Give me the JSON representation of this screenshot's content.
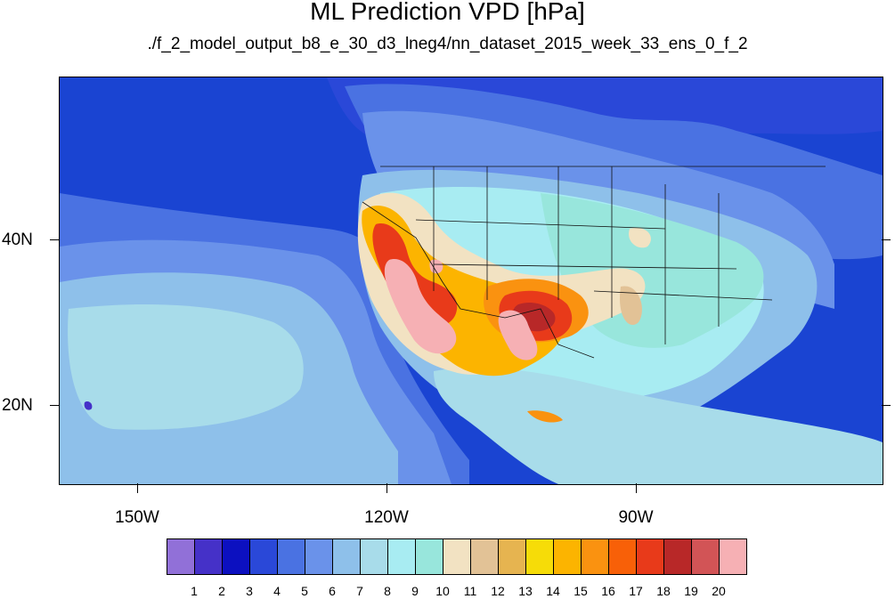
{
  "title": "ML Prediction VPD [hPa]",
  "subtitle": "./f_2_model_output_b8_e_30_d3_lneg4/nn_dataset_2015_week_33_ens_0_f_2",
  "map": {
    "lat_labels": [
      "40N",
      "20N"
    ],
    "lon_labels": [
      "150W",
      "120W",
      "90W"
    ]
  },
  "colorbar": {
    "colors": [
      "#9170d8",
      "#4531c8",
      "#0c10c0",
      "#2a48d8",
      "#4a72e2",
      "#6a92ea",
      "#8ec0ea",
      "#a8dcea",
      "#a8ecf2",
      "#98e6dc",
      "#f2e2c2",
      "#e2c296",
      "#e6b450",
      "#f6dc08",
      "#fcb400",
      "#fa9210",
      "#f86008",
      "#e83a1a",
      "#b82828",
      "#d25456",
      "#f6b0b4"
    ],
    "labels": [
      "1",
      "2",
      "3",
      "4",
      "5",
      "6",
      "7",
      "8",
      "9",
      "10",
      "11",
      "12",
      "13",
      "14",
      "15",
      "16",
      "17",
      "18",
      "19",
      "20"
    ]
  }
}
